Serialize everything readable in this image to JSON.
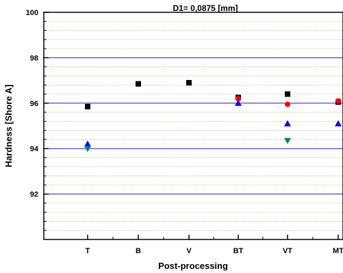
{
  "chart_data": {
    "type": "scatter",
    "title": "D1= 0,0875 [mm]",
    "xlabel": "Post-processing",
    "ylabel": "Hardness [Shore A]",
    "categories": [
      "T",
      "B",
      "V",
      "BT",
      "VT",
      "MT"
    ],
    "ylim": [
      90,
      100
    ],
    "y_ticks": [
      92,
      94,
      96,
      98,
      100
    ],
    "major_grid_lines": [
      92,
      94,
      96,
      98
    ],
    "minor_grid": true,
    "colors": {
      "major_grid": "#1f1fbf",
      "minor_grid": "#9bcf68"
    },
    "series": [
      {
        "marker": "square",
        "color": "#000000",
        "values": [
          95.85,
          96.85,
          96.9,
          96.25,
          96.4,
          96.05
        ]
      },
      {
        "marker": "circle",
        "color": "#ff0000",
        "values": [
          94.1,
          null,
          null,
          96.2,
          95.95,
          96.1
        ]
      },
      {
        "marker": "triangle-up",
        "color": "#0000ff",
        "values": [
          94.2,
          null,
          null,
          96.0,
          95.1,
          95.1
        ]
      },
      {
        "marker": "triangle-down",
        "color": "#008080",
        "values": [
          94.0,
          null,
          null,
          null,
          94.35,
          null
        ]
      }
    ]
  }
}
